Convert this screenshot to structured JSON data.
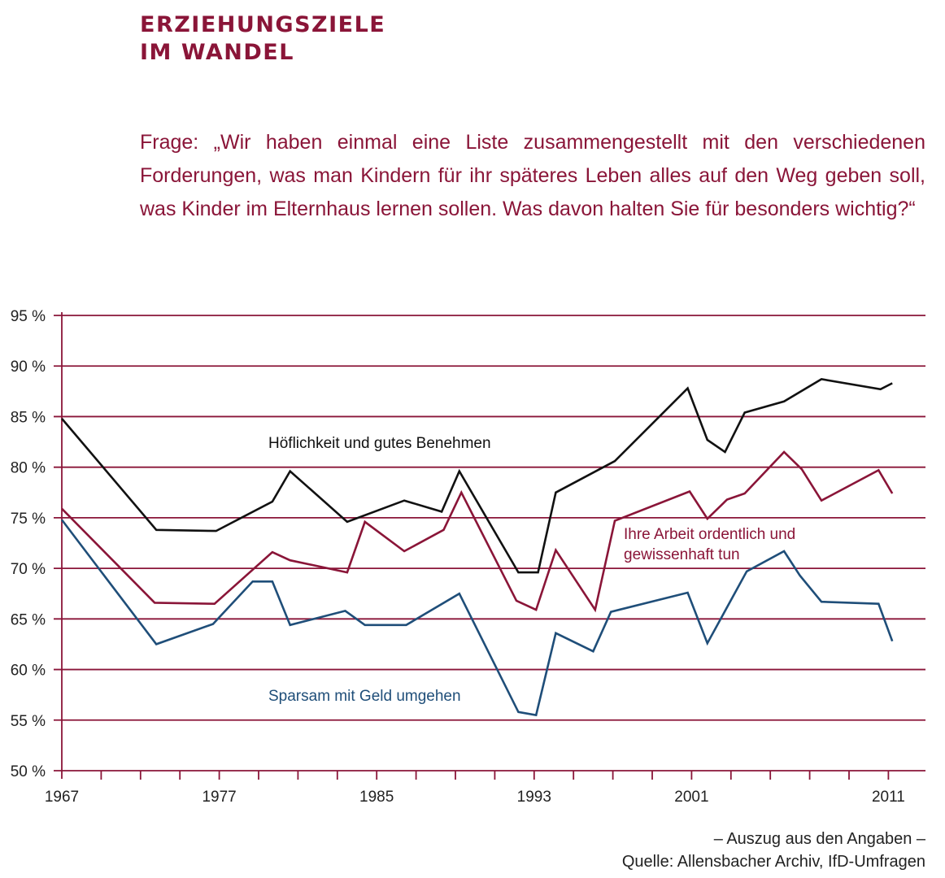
{
  "header": {
    "title_line1": "ERZIEHUNGSZIELE",
    "title_line2": "IM WANDEL",
    "question": "Frage: „Wir haben einmal eine Liste zusammengestellt mit den verschiedenen Forderungen, was man Kindern für ihr späteres Leben alles auf den Weg geben soll, was Kinder im Elternhaus lernen sollen. Was davon halten Sie für besonders wichtig?“"
  },
  "footer": {
    "note": "– Auszug aus den Angaben –",
    "source": "Quelle: Allensbacher Archiv, IfD-Umfragen"
  },
  "colors": {
    "accent": "#8a1538",
    "grid": "#8a1538",
    "black_series": "#111111",
    "red_series": "#8a1538",
    "blue_series": "#1f4e79"
  },
  "chart_data": {
    "type": "line",
    "title": "Erziehungsziele im Wandel",
    "xlabel": "",
    "ylabel": "",
    "ylim": [
      50,
      95
    ],
    "yticks": [
      50,
      55,
      60,
      65,
      70,
      75,
      80,
      85,
      90,
      95
    ],
    "ytick_labels": [
      "50 %",
      "55 %",
      "60 %",
      "65 %",
      "70 %",
      "75 %",
      "80 %",
      "85 %",
      "90 %",
      "95 %"
    ],
    "xtick_labels": [
      "1967",
      "1977",
      "1985",
      "1993",
      "2001",
      "2011"
    ],
    "xlim": [
      1967,
      2013
    ],
    "grid": true,
    "series": [
      {
        "name": "Höflichkeit und gutes Benehmen",
        "color": "#111111",
        "x": [
          1967,
          1973.0,
          1976.8,
          1979.7,
          1980.6,
          1983.5,
          1986.4,
          1988.3,
          1989.2,
          1992.2,
          1993.2,
          1994.1,
          1997.1,
          2000.8,
          2001.8,
          2002.7,
          2003.7,
          2005.7,
          2007.6,
          2010.6,
          2011.2
        ],
        "values": [
          84.8,
          73.8,
          73.7,
          76.6,
          79.6,
          74.6,
          76.7,
          75.6,
          79.6,
          69.6,
          69.6,
          77.5,
          80.6,
          87.8,
          82.7,
          81.5,
          85.4,
          86.5,
          88.7,
          87.7,
          88.3
        ]
      },
      {
        "name": "Ihre Arbeit ordentlich und gewissenhaft tun",
        "color": "#8a1538",
        "x": [
          1967,
          1972.9,
          1976.7,
          1979.7,
          1980.6,
          1983.5,
          1984.4,
          1986.4,
          1988.4,
          1989.3,
          1992.1,
          1993.1,
          1994.1,
          1996.1,
          1997.1,
          2000.9,
          2001.8,
          2002.8,
          2003.7,
          2005.7,
          2006.6,
          2007.6,
          2010.5,
          2011.2
        ],
        "values": [
          75.9,
          66.6,
          66.5,
          71.6,
          70.8,
          69.6,
          74.6,
          71.7,
          73.8,
          77.5,
          66.8,
          65.9,
          71.8,
          65.9,
          74.7,
          77.6,
          74.9,
          76.8,
          77.4,
          81.5,
          79.8,
          76.7,
          79.7,
          77.4
        ]
      },
      {
        "name": "Sparsam mit Geld umgehen",
        "color": "#1f4e79",
        "x": [
          1967,
          1973.0,
          1976.6,
          1978.7,
          1979.7,
          1980.6,
          1983.4,
          1984.4,
          1986.5,
          1989.2,
          1992.2,
          1993.1,
          1994.1,
          1996.0,
          1996.9,
          2000.8,
          2001.8,
          2003.8,
          2005.7,
          2006.5,
          2007.6,
          2010.5,
          2011.2
        ],
        "values": [
          74.8,
          62.5,
          64.5,
          68.7,
          68.7,
          64.4,
          65.8,
          64.4,
          64.4,
          67.5,
          55.8,
          55.5,
          63.6,
          61.8,
          65.7,
          67.6,
          62.6,
          69.7,
          71.7,
          69.3,
          66.7,
          66.5,
          62.8
        ]
      }
    ],
    "annotations": [
      {
        "text": "Höflichkeit und gutes Benehmen",
        "series": 0
      },
      {
        "text": "Ihre Arbeit ordentlich und",
        "series": 1
      },
      {
        "text": "gewissenhaft tun",
        "series": 1
      },
      {
        "text": "Sparsam mit Geld umgehen",
        "series": 2
      }
    ]
  }
}
